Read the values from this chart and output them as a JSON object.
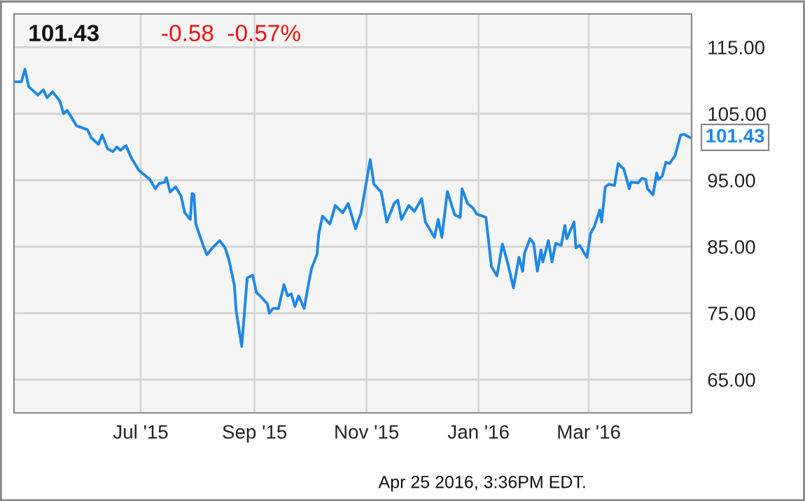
{
  "chart_data": {
    "type": "line",
    "title": "101.43",
    "subtitle": "-0.58  -0.57%",
    "annotations": [
      "Apr 25 2016, 3:36PM EDT.",
      {
        "text": "101.43",
        "x": "2016-04-25",
        "y": 101.43
      }
    ],
    "series": [
      {
        "color": "#1e88e5",
        "x": [
          "2015-04-24",
          "2015-04-27",
          "2015-04-29",
          "2015-05-01",
          "2015-05-06",
          "2015-05-09",
          "2015-05-11",
          "2015-05-14",
          "2015-05-18",
          "2015-05-20",
          "2015-05-22",
          "2015-05-27",
          "2015-06-02",
          "2015-06-04",
          "2015-06-08",
          "2015-06-10",
          "2015-06-13",
          "2015-06-16",
          "2015-06-18",
          "2015-06-20",
          "2015-06-23",
          "2015-06-26",
          "2015-06-30",
          "2015-07-06",
          "2015-07-09",
          "2015-07-11",
          "2015-07-14",
          "2015-07-15",
          "2015-07-17",
          "2015-07-20",
          "2015-07-23",
          "2015-07-25",
          "2015-07-28",
          "2015-07-29",
          "2015-07-30",
          "2015-07-31",
          "2015-08-04",
          "2015-08-06",
          "2015-08-09",
          "2015-08-13",
          "2015-08-16",
          "2015-08-18",
          "2015-08-21",
          "2015-08-22",
          "2015-08-25",
          "2015-08-28",
          "2015-08-31",
          "2015-09-02",
          "2015-09-04",
          "2015-09-08",
          "2015-09-09",
          "2015-09-11",
          "2015-09-14",
          "2015-09-17",
          "2015-09-19",
          "2015-09-21",
          "2015-09-23",
          "2015-09-25",
          "2015-09-28",
          "2015-09-30",
          "2015-10-02",
          "2015-10-05",
          "2015-10-06",
          "2015-10-08",
          "2015-10-12",
          "2015-10-15",
          "2015-10-19",
          "2015-10-22",
          "2015-10-26",
          "2015-10-29",
          "2015-11-03",
          "2015-11-05",
          "2015-11-09",
          "2015-11-12",
          "2015-11-16",
          "2015-11-18",
          "2015-11-20",
          "2015-11-24",
          "2015-11-27",
          "2015-12-01",
          "2015-12-03",
          "2015-12-08",
          "2015-12-10",
          "2015-12-12",
          "2015-12-15",
          "2015-12-19",
          "2015-12-22",
          "2015-12-23",
          "2015-12-26",
          "2015-12-29",
          "2015-12-31",
          "2016-01-05",
          "2016-01-08",
          "2016-01-11",
          "2016-01-14",
          "2016-01-17",
          "2016-01-20",
          "2016-01-23",
          "2016-01-25",
          "2016-01-26",
          "2016-01-29",
          "2016-01-31",
          "2016-02-02",
          "2016-02-04",
          "2016-02-05",
          "2016-02-08",
          "2016-02-10",
          "2016-02-12",
          "2016-02-15",
          "2016-02-17",
          "2016-02-18",
          "2016-02-22",
          "2016-02-23",
          "2016-02-25",
          "2016-02-29",
          "2016-03-02",
          "2016-03-04",
          "2016-03-07",
          "2016-03-08",
          "2016-03-10",
          "2016-03-12",
          "2016-03-15",
          "2016-03-17",
          "2016-03-20",
          "2016-03-21",
          "2016-03-23",
          "2016-03-24",
          "2016-03-28",
          "2016-03-30",
          "2016-04-01",
          "2016-04-02",
          "2016-04-05",
          "2016-04-07",
          "2016-04-08",
          "2016-04-10",
          "2016-04-12",
          "2016-04-14",
          "2016-04-17",
          "2016-04-20",
          "2016-04-22",
          "2016-04-25"
        ],
        "values": [
          109.8,
          109.8,
          111.7,
          109.1,
          107.8,
          108.6,
          107.4,
          108.3,
          106.9,
          105,
          105.5,
          103.2,
          102.6,
          101.4,
          100.4,
          101.8,
          99.7,
          99.3,
          100,
          99.5,
          100.2,
          98.3,
          96.5,
          95.1,
          93.7,
          94.5,
          94.7,
          95.4,
          93.2,
          94,
          92.6,
          90.1,
          89.1,
          93,
          92.8,
          88.4,
          85.2,
          83.8,
          84.8,
          85.9,
          84.8,
          83.1,
          79.2,
          75.3,
          70,
          80.3,
          80.7,
          78.1,
          77.6,
          76.4,
          75,
          75.7,
          75.7,
          79.3,
          77.6,
          77.9,
          76,
          77.6,
          75.7,
          78.8,
          81.7,
          83.8,
          87,
          89.6,
          88.4,
          91.2,
          90.1,
          91.5,
          87.7,
          90.1,
          98.1,
          94.4,
          93.2,
          88.7,
          91.5,
          92,
          89.1,
          91.2,
          90.3,
          92.2,
          88.7,
          86.4,
          89.1,
          86.4,
          93.3,
          89.8,
          89.4,
          93.7,
          91.5,
          90.8,
          89.9,
          89.4,
          82,
          80.6,
          85.4,
          82.4,
          78.8,
          83.4,
          81.3,
          84,
          86.2,
          85.5,
          81.3,
          84.5,
          82.7,
          85.9,
          82.7,
          85.5,
          85.2,
          88.2,
          86.2,
          88.7,
          84.8,
          85.2,
          83.4,
          87,
          88,
          90.5,
          88.7,
          94,
          94.4,
          94.2,
          97.5,
          96.7,
          95.8,
          93.7,
          94.7,
          94.6,
          95.3,
          95.1,
          93.7,
          92.8,
          96.1,
          95.1,
          95.6,
          97.7,
          97.5,
          98.7,
          101.8,
          101.9,
          101.43
        ]
      }
    ],
    "xlim": [
      "2015-04-23",
      "2016-04-26"
    ],
    "xticks": [
      {
        "value": "2015-07-01",
        "label": "Jul '15"
      },
      {
        "value": "2015-09-01",
        "label": "Sep '15"
      },
      {
        "value": "2015-11-01",
        "label": "Nov '15"
      },
      {
        "value": "2016-01-01",
        "label": "Jan '16"
      },
      {
        "value": "2016-03-01",
        "label": "Mar '16"
      }
    ],
    "ylim": [
      60,
      120
    ],
    "yticks": [
      {
        "value": 65,
        "label": "65.00"
      },
      {
        "value": 75,
        "label": "75.00"
      },
      {
        "value": 85,
        "label": "85.00"
      },
      {
        "value": 95,
        "label": "95.00"
      },
      {
        "value": 105,
        "label": "105.00"
      },
      {
        "value": 115,
        "label": "115.00"
      }
    ],
    "grid": true,
    "legend": false
  }
}
